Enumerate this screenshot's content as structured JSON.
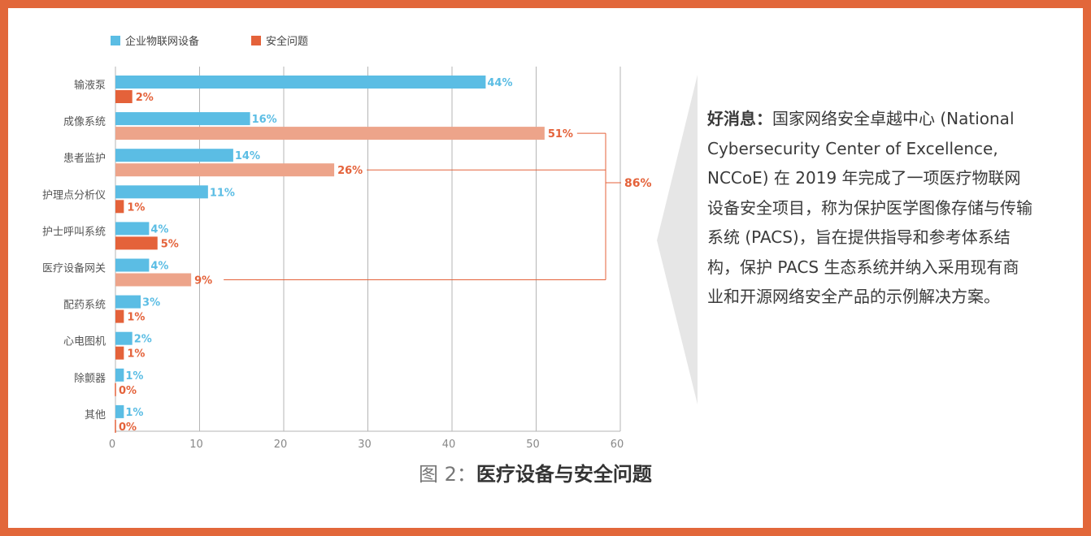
{
  "legend": {
    "series_0": "企业物联网设备",
    "series_1": "安全问题"
  },
  "bracket_label": "86%",
  "caption": {
    "prefix": "图 2：",
    "title": "医疗设备与安全问题"
  },
  "callout": {
    "lead": "好消息：",
    "body": "国家网络安全卓越中心 (National Cybersecurity Center of Excellence, NCCoE) 在 2019 年完成了一项医疗物联网设备安全项目，称为保护医学图像存储与传输系统 (PACS)，旨在提供指导和参考体系结构，保护 PACS 生态系统并纳入采用现有商业和开源网络安全产品的示例解决方案。"
  },
  "colors": {
    "border": "#e2673a",
    "series_0": "#5bbde4",
    "series_1": "#e4623a",
    "series_1_highlight": "#eda48a",
    "callout_arrow": "#e6e6e6",
    "grid": "#b5b5b5"
  },
  "chart_data": {
    "type": "bar",
    "orientation": "horizontal",
    "categories": [
      "输液泵",
      "成像系统",
      "患者监护",
      "护理点分析仪",
      "护士呼叫系统",
      "医疗设备网关",
      "配药系统",
      "心电图机",
      "除颤器",
      "其他"
    ],
    "series": [
      {
        "name": "企业物联网设备",
        "values": [
          44,
          16,
          14,
          11,
          4,
          4,
          3,
          2,
          1,
          1
        ],
        "labels": [
          "44%",
          "16%",
          "14%",
          "11%",
          "4%",
          "4%",
          "3%",
          "2%",
          "1%",
          "1%"
        ]
      },
      {
        "name": "安全问题",
        "values": [
          2,
          51,
          26,
          1,
          5,
          9,
          1,
          1,
          0,
          0
        ],
        "labels": [
          "2%",
          "51%",
          "26%",
          "1%",
          "5%",
          "9%",
          "1%",
          "1%",
          "0%",
          "0%"
        ],
        "highlighted_categories": [
          "成像系统",
          "患者监护",
          "医疗设备网关"
        ]
      }
    ],
    "xlim": [
      0,
      60
    ],
    "xticks": [
      0,
      10,
      20,
      30,
      40,
      50,
      60
    ],
    "grid": true,
    "legend_position": "top-left",
    "bracket_total": "86%"
  }
}
